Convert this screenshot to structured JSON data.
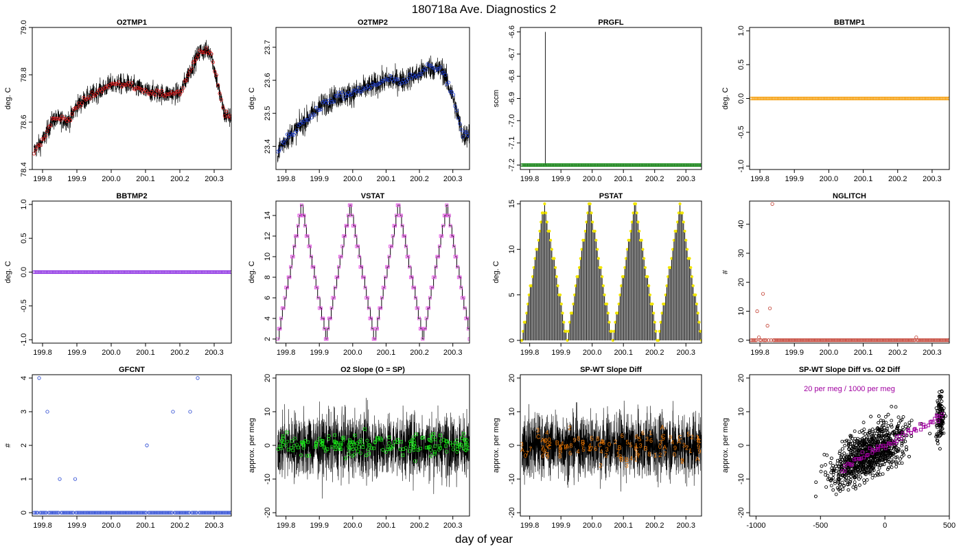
{
  "figure": {
    "title": "180718a   Ave. Diagnostics 2",
    "xlabel": "day of year"
  },
  "chart_data": [
    {
      "id": "o2tmp1",
      "type": "line",
      "title": "O2TMP1",
      "ylabel": "deg. C",
      "xlim": [
        199.77,
        200.35
      ],
      "ylim": [
        78.4,
        79.0
      ],
      "xticks": [
        199.8,
        199.9,
        200.0,
        200.1,
        200.2,
        200.3
      ],
      "xtick_labels": [
        "199.8",
        "199.9",
        "200.0",
        "200.1",
        "200.2",
        "200.3"
      ],
      "yticks": [
        78.4,
        78.6,
        78.8,
        79.0
      ],
      "ytick_labels": [
        "78.4",
        "78.6",
        "78.8",
        "79.0"
      ],
      "marker_color": "#e31a1c",
      "marker": "circle",
      "trend_x": [
        199.77,
        199.8,
        199.83,
        199.88,
        199.9,
        199.95,
        200.0,
        200.05,
        200.1,
        200.15,
        200.2,
        200.23,
        200.26,
        200.29,
        200.31,
        200.33,
        200.35
      ],
      "trend_y": [
        78.47,
        78.52,
        78.61,
        78.61,
        78.67,
        78.72,
        78.76,
        78.76,
        78.73,
        78.72,
        78.72,
        78.82,
        78.9,
        78.9,
        78.76,
        78.63,
        78.62
      ],
      "noise": 0.07
    },
    {
      "id": "o2tmp2",
      "type": "line",
      "title": "O2TMP2",
      "ylabel": "deg. C",
      "xlim": [
        199.77,
        200.35
      ],
      "ylim": [
        23.33,
        23.76
      ],
      "xticks": [
        199.8,
        199.9,
        200.0,
        200.1,
        200.2,
        200.3
      ],
      "xtick_labels": [
        "199.8",
        "199.9",
        "200.0",
        "200.1",
        "200.2",
        "200.3"
      ],
      "yticks": [
        23.4,
        23.5,
        23.6,
        23.7
      ],
      "ytick_labels": [
        "23.4",
        "23.5",
        "23.6",
        "23.7"
      ],
      "marker_color": "#1f3fd0",
      "marker": "circle",
      "trend_x": [
        199.77,
        199.8,
        199.85,
        199.9,
        199.95,
        200.0,
        200.05,
        200.1,
        200.15,
        200.2,
        200.23,
        200.27,
        200.3,
        200.33,
        200.35
      ],
      "trend_y": [
        23.38,
        23.42,
        23.47,
        23.52,
        23.55,
        23.56,
        23.58,
        23.6,
        23.6,
        23.62,
        23.64,
        23.63,
        23.55,
        23.43,
        23.44
      ],
      "noise": 0.06
    },
    {
      "id": "prgfl",
      "type": "line",
      "title": "PRGFL",
      "ylabel": "sccm",
      "xlim": [
        199.77,
        200.35
      ],
      "ylim": [
        -7.22,
        -6.58
      ],
      "xticks": [
        199.8,
        199.9,
        200.0,
        200.1,
        200.2,
        200.3
      ],
      "xtick_labels": [
        "199.8",
        "199.9",
        "200.0",
        "200.1",
        "200.2",
        "200.3"
      ],
      "yticks": [
        -7.2,
        -7.1,
        -7.0,
        -6.9,
        -6.8,
        -6.7,
        -6.6
      ],
      "ytick_labels": [
        "-7.2",
        "-7.1",
        "-7.0",
        "-6.9",
        "-6.8",
        "-6.7",
        "-6.6"
      ],
      "marker_color": "#1a8a1a",
      "marker": "circle",
      "baseline": -7.2,
      "spike": {
        "x": 199.85,
        "y": -6.6
      }
    },
    {
      "id": "bbtmp1",
      "type": "scatter",
      "title": "BBTMP1",
      "ylabel": "deg. C",
      "xlim": [
        199.77,
        200.35
      ],
      "ylim": [
        -1.05,
        1.05
      ],
      "xticks": [
        199.8,
        199.9,
        200.0,
        200.1,
        200.2,
        200.3
      ],
      "xtick_labels": [
        "199.8",
        "199.9",
        "200.0",
        "200.1",
        "200.2",
        "200.3"
      ],
      "yticks": [
        -1.0,
        -0.5,
        0.0,
        0.5,
        1.0
      ],
      "ytick_labels": [
        "-1.0",
        "-0.5",
        "0.0",
        "0.5",
        "1.0"
      ],
      "marker_color": "#f59a00",
      "marker": "circle",
      "constant": 0.0
    },
    {
      "id": "bbtmp2",
      "type": "scatter",
      "title": "BBTMP2",
      "ylabel": "deg. C",
      "xlim": [
        199.77,
        200.35
      ],
      "ylim": [
        -1.05,
        1.05
      ],
      "xticks": [
        199.8,
        199.9,
        200.0,
        200.1,
        200.2,
        200.3
      ],
      "xtick_labels": [
        "199.8",
        "199.9",
        "200.0",
        "200.1",
        "200.2",
        "200.3"
      ],
      "yticks": [
        -1.0,
        -0.5,
        0.0,
        0.5,
        1.0
      ],
      "ytick_labels": [
        "-1.0",
        "-0.5",
        "0.0",
        "0.5",
        "1.0"
      ],
      "marker_color": "#8a2be2",
      "marker": "circle",
      "constant": 0.0
    },
    {
      "id": "vstat",
      "type": "line",
      "title": "VSTAT",
      "ylabel": "deg. C",
      "xlim": [
        199.77,
        200.35
      ],
      "ylim": [
        1.6,
        15.4
      ],
      "xticks": [
        199.8,
        199.9,
        200.0,
        200.1,
        200.2,
        200.3
      ],
      "xtick_labels": [
        "199.8",
        "199.9",
        "200.0",
        "200.1",
        "200.2",
        "200.3"
      ],
      "yticks": [
        2,
        4,
        6,
        8,
        10,
        12,
        14
      ],
      "ytick_labels": [
        "2",
        "4",
        "6",
        "8",
        "10",
        "12",
        "14"
      ],
      "marker_color": "#e040e0",
      "marker": "square",
      "cycle": {
        "min": 2,
        "max": 15,
        "peaks": [
          199.847,
          199.992,
          200.137,
          200.282
        ],
        "troughs": [
          199.775,
          199.92,
          200.065,
          200.21,
          200.352
        ]
      }
    },
    {
      "id": "pstat",
      "type": "bar",
      "title": "PSTAT",
      "ylabel": "deg. C",
      "xlim": [
        199.77,
        200.35
      ],
      "ylim": [
        -0.3,
        15.3
      ],
      "xticks": [
        199.8,
        199.9,
        200.0,
        200.1,
        200.2,
        200.3
      ],
      "xtick_labels": [
        "199.8",
        "199.9",
        "200.0",
        "200.1",
        "200.2",
        "200.3"
      ],
      "yticks": [
        0,
        5,
        10,
        15
      ],
      "ytick_labels": [
        "0",
        "5",
        "10",
        "15"
      ],
      "marker_color": "#f2e600",
      "marker": "circle",
      "cycle": {
        "min": 0,
        "max": 15,
        "peaks": [
          199.847,
          199.992,
          200.137,
          200.282
        ],
        "troughs": [
          199.775,
          199.92,
          200.065,
          200.21,
          200.352
        ]
      }
    },
    {
      "id": "nglitch",
      "type": "scatter",
      "title": "NGLITCH",
      "ylabel": "#",
      "xlim": [
        199.77,
        200.35
      ],
      "ylim": [
        -1,
        48
      ],
      "xticks": [
        199.8,
        199.9,
        200.0,
        200.1,
        200.2,
        200.3
      ],
      "xtick_labels": [
        "199.8",
        "199.9",
        "200.0",
        "200.1",
        "200.2",
        "200.3"
      ],
      "yticks": [
        0,
        10,
        20,
        30,
        40
      ],
      "ytick_labels": [
        "0",
        "10",
        "20",
        "30",
        "40"
      ],
      "marker_color": "#c0392b",
      "marker": "circle",
      "outliers_x": [
        199.792,
        199.797,
        199.809,
        199.822,
        199.829,
        199.836,
        200.254
      ],
      "outliers_y": [
        10,
        1,
        16,
        5,
        11,
        47,
        1
      ]
    },
    {
      "id": "gfcnt",
      "type": "scatter",
      "title": "GFCNT",
      "ylabel": "#",
      "xlim": [
        199.77,
        200.35
      ],
      "ylim": [
        -0.1,
        4.1
      ],
      "xticks": [
        199.8,
        199.9,
        200.0,
        200.1,
        200.2,
        200.3
      ],
      "xtick_labels": [
        "199.8",
        "199.9",
        "200.0",
        "200.1",
        "200.2",
        "200.3"
      ],
      "yticks": [
        0,
        1,
        2,
        3,
        4
      ],
      "ytick_labels": [
        "0",
        "1",
        "2",
        "3",
        "4"
      ],
      "marker_color": "#1f3fd0",
      "marker": "circle",
      "outliers_x": [
        199.79,
        199.814,
        199.85,
        199.895,
        200.104,
        200.18,
        200.23,
        200.252
      ],
      "outliers_y": [
        4,
        3,
        1,
        1,
        2,
        3,
        3,
        4
      ]
    },
    {
      "id": "o2slope",
      "type": "line",
      "title": "O2 Slope (O = SP)",
      "ylabel": "approx. per meg",
      "xlim": [
        199.77,
        200.35
      ],
      "ylim": [
        -21,
        21
      ],
      "xticks": [
        199.8,
        199.9,
        200.0,
        200.1,
        200.2,
        200.3
      ],
      "xtick_labels": [
        "199.8",
        "199.9",
        "200.0",
        "200.1",
        "200.2",
        "200.3"
      ],
      "yticks": [
        -20,
        -10,
        0,
        10,
        20
      ],
      "ytick_labels": [
        "-20",
        "-10",
        "0",
        "10",
        "20"
      ],
      "marker_color": "#19e619",
      "marker": "mixed",
      "noise": 8
    },
    {
      "id": "spwt",
      "type": "line",
      "title": "SP-WT Slope Diff",
      "ylabel": "approx. per meg",
      "xlim": [
        199.77,
        200.35
      ],
      "ylim": [
        -21,
        21
      ],
      "xticks": [
        199.8,
        199.9,
        200.0,
        200.1,
        200.2,
        200.3
      ],
      "xtick_labels": [
        "199.8",
        "199.9",
        "200.0",
        "200.1",
        "200.2",
        "200.3"
      ],
      "yticks": [
        -20,
        -10,
        0,
        10,
        20
      ],
      "ytick_labels": [
        "-20",
        "-10",
        "0",
        "10",
        "20"
      ],
      "marker_color": "#f07800",
      "marker": "digits",
      "noise": 8,
      "labels": [
        "0",
        "1",
        "2",
        "3",
        "4",
        "5",
        "6",
        "7",
        "8",
        "9",
        "A",
        "B",
        "C"
      ]
    },
    {
      "id": "spwt_vs_o2",
      "type": "scatter",
      "title": "SP-WT Slope Diff vs. O2 Diff",
      "ylabel": "approx. per meg",
      "xlim": [
        -1050,
        500
      ],
      "ylim": [
        -21,
        21
      ],
      "xticks": [
        -1000,
        -500,
        0,
        500
      ],
      "xtick_labels": [
        "-1000",
        "-500",
        "0",
        "500"
      ],
      "yticks": [
        -20,
        -10,
        0,
        10,
        20
      ],
      "ytick_labels": [
        "-20",
        "-10",
        "0",
        "10",
        "20"
      ],
      "marker_color": "#000000",
      "marker": "circle",
      "fit_color": "#a000a0",
      "fit_slope_per_meg": 0.02,
      "annotation": "20 per meg / 1000 per meg"
    }
  ]
}
